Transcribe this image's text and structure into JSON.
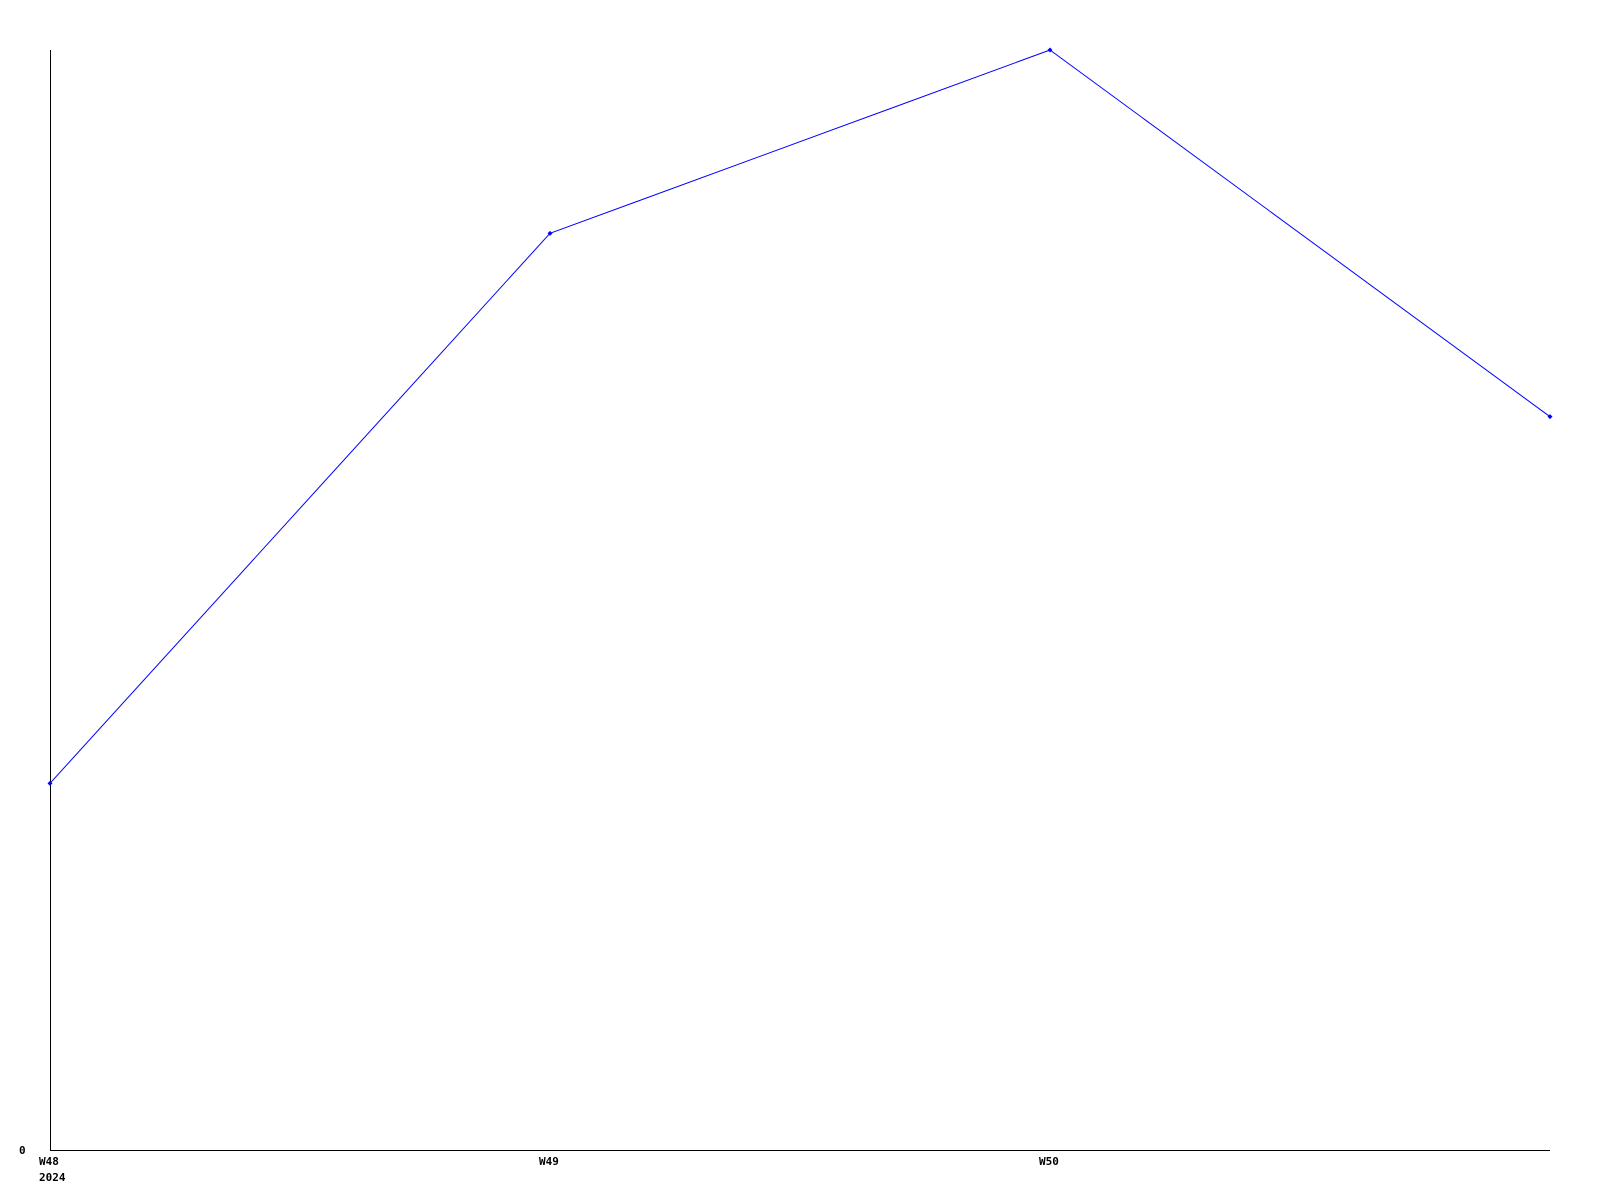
{
  "chart_data": {
    "type": "line",
    "title": "",
    "xlabel": "",
    "ylabel": "",
    "x": [
      48,
      49,
      50,
      51
    ],
    "x_tick_labels": [
      {
        "x": 48,
        "label": "W48",
        "sublabel": "2024"
      },
      {
        "x": 49,
        "label": "W49",
        "sublabel": ""
      },
      {
        "x": 50,
        "label": "W50",
        "sublabel": ""
      }
    ],
    "y_tick_labels": [
      {
        "y": 0,
        "label": "0"
      }
    ],
    "series": [
      {
        "values": [
          2,
          5,
          6,
          4
        ],
        "color": "#0000ff"
      }
    ],
    "xlim": [
      48,
      51
    ],
    "ylim": [
      0,
      6
    ],
    "grid": false,
    "legend": "none"
  }
}
